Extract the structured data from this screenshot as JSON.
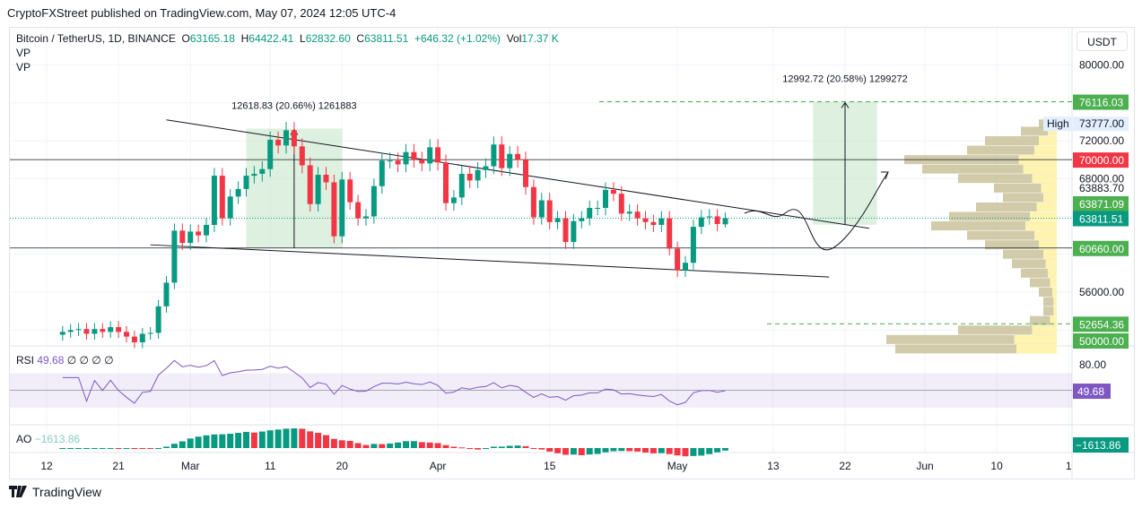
{
  "publisher_line": "CryptoFXStreet published on TradingView.com, May 07, 2024 12:05 UTC-4",
  "legend": {
    "symbol": "Bitcoin / TetherUS, 1D, BINANCE",
    "o_label": "O",
    "o": "63165.18",
    "h_label": "H",
    "h": "64422.41",
    "l_label": "L",
    "l": "62832.60",
    "c_label": "C",
    "c": "63811.51",
    "change": "+646.32 (+1.02%)",
    "vol_label": "Vol",
    "vol": "17.37 K",
    "vp1": "VP",
    "vp2": "VP"
  },
  "currency": "USDT",
  "rsi": {
    "label": "RSI",
    "value": "49.68",
    "extras": "∅ ∅ ∅ ∅",
    "axis_label": "80.00",
    "badge": "49.68"
  },
  "ao": {
    "label": "AO",
    "value": "−1613.86",
    "badge": "−1613.86"
  },
  "footer": {
    "brand": "TradingView"
  },
  "colors": {
    "up": "#089981",
    "down": "#f23645",
    "badge_green": "#4caf50",
    "badge_red": "#f23645",
    "rsi": "#7e57c2",
    "measure_fill": "#c8e6c9"
  },
  "chart_data": {
    "type": "candlestick",
    "start_date": "2024-02-14",
    "first_open": 51500,
    "closes": [
      51800,
      52000,
      52100,
      51600,
      52100,
      51800,
      52300,
      51800,
      51300,
      50700,
      51600,
      51700,
      54500,
      57000,
      62500,
      61200,
      62400,
      62000,
      63100,
      68300,
      63800,
      66100,
      66900,
      68300,
      68500,
      69000,
      72100,
      71500,
      73100,
      71400,
      69400,
      65300,
      68400,
      67600,
      61900,
      67900,
      65500,
      63800,
      64000,
      67200,
      69900,
      69900,
      69500,
      70800,
      70000,
      69600,
      71300,
      69700,
      65400,
      66000,
      68500,
      67800,
      68900,
      69300,
      71600,
      69100,
      70600,
      70000,
      67100,
      63900,
      65700,
      63400,
      63800,
      61300,
      63500,
      63800,
      64900,
      64900,
      66800,
      66400,
      64300,
      64500,
      63800,
      63400,
      63100,
      63800,
      60600,
      58300,
      59100,
      62900,
      63900,
      64000,
      63200,
      63811.51
    ],
    "last_candle": {
      "open": 63165.18,
      "high": 64422.41,
      "low": 62832.6,
      "close": 63811.51
    },
    "y_ticks": [
      "80000.00",
      "72000.00",
      "68000.00",
      "56000.00"
    ],
    "price_labels": [
      {
        "value": "76116.03",
        "kind": "green"
      },
      {
        "value": "73777.00",
        "kind": "high",
        "tag": "High"
      },
      {
        "value": "70000.00",
        "kind": "red"
      },
      {
        "value": "63883.70",
        "kind": "plain"
      },
      {
        "value": "63871.09",
        "kind": "green"
      },
      {
        "value": "63811.51",
        "kind": "teal"
      },
      {
        "value": "60660.00",
        "kind": "green"
      },
      {
        "value": "52654.36",
        "kind": "green"
      },
      {
        "value": "50000.00",
        "kind": "green"
      }
    ],
    "x_ticks": [
      {
        "label": "12",
        "date": "2024-02-12"
      },
      {
        "label": "21",
        "date": "2024-02-21"
      },
      {
        "label": "Mar",
        "date": "2024-03-01"
      },
      {
        "label": "11",
        "date": "2024-03-11"
      },
      {
        "label": "20",
        "date": "2024-03-20"
      },
      {
        "label": "Apr",
        "date": "2024-04-01"
      },
      {
        "label": "15",
        "date": "2024-04-15"
      },
      {
        "label": "May",
        "date": "2024-05-01"
      },
      {
        "label": "13",
        "date": "2024-05-13"
      },
      {
        "label": "22",
        "date": "2024-05-22"
      },
      {
        "label": "Jun",
        "date": "2024-06-01"
      },
      {
        "label": "10",
        "date": "2024-06-10"
      },
      {
        "label": "1",
        "date": "2024-06-19"
      }
    ],
    "horizontal_levels": [
      70000,
      60660,
      63811.51
    ],
    "measures": [
      {
        "label": "12618.83 (20.66%) 1261883",
        "from_date": "2024-03-08",
        "to_date": "2024-03-20",
        "low": 60660,
        "high": 73280
      },
      {
        "label": "12992.72 (20.58%) 1299272",
        "from_date": "2024-05-18",
        "to_date": "2024-05-26",
        "low": 63123,
        "high": 76116.03
      }
    ],
    "trendlines": [
      {
        "from": [
          "2024-02-27",
          74200
        ],
        "to": [
          "2024-05-25",
          62750
        ]
      },
      {
        "from": [
          "2024-02-25",
          61000
        ],
        "to": [
          "2024-05-20",
          57600
        ]
      }
    ]
  }
}
